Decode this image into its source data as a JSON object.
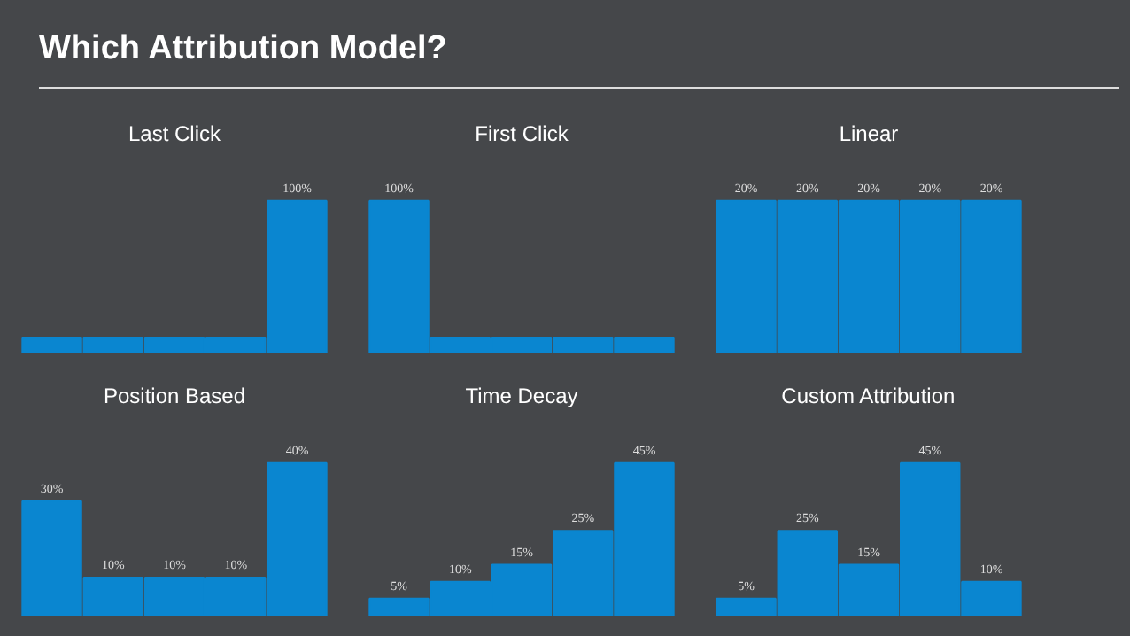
{
  "chart_data": [
    {
      "type": "other",
      "title": "Which Attribution Model?"
    },
    {
      "type": "bar",
      "title": "Last Click",
      "categories": [
        null,
        null,
        null,
        null,
        null
      ],
      "values": [
        10,
        10,
        10,
        10,
        100
      ],
      "value_labels": [
        null,
        null,
        null,
        null,
        "100%"
      ],
      "color": "#0a86d0"
    },
    {
      "type": "bar",
      "title": "First Click",
      "categories": [
        null,
        null,
        null,
        null,
        null
      ],
      "values": [
        100,
        10,
        10,
        10,
        10
      ],
      "value_labels": [
        "100%",
        null,
        null,
        null,
        null
      ],
      "color": "#0a86d0"
    },
    {
      "type": "bar",
      "title": "Linear",
      "categories": [
        null,
        null,
        null,
        null,
        null
      ],
      "values": [
        20,
        20,
        20,
        20,
        20
      ],
      "value_labels": [
        "20%",
        "20%",
        "20%",
        "20%",
        "20%"
      ],
      "color": "#0a86d0"
    },
    {
      "type": "bar",
      "title": "Position Based",
      "categories": [
        null,
        null,
        null,
        null,
        null
      ],
      "values": [
        30,
        10,
        10,
        10,
        40
      ],
      "value_labels": [
        "30%",
        "10%",
        "10%",
        "10%",
        "40%"
      ],
      "color": "#0a86d0"
    },
    {
      "type": "bar",
      "title": "Time Decay",
      "categories": [
        null,
        null,
        null,
        null,
        null
      ],
      "values": [
        5,
        10,
        15,
        25,
        45
      ],
      "value_labels": [
        "5%",
        "10%",
        "15%",
        "25%",
        "45%"
      ],
      "color": "#0a86d0"
    },
    {
      "type": "bar",
      "title": "Custom Attribution",
      "categories": [
        null,
        null,
        null,
        null,
        null
      ],
      "values": [
        5,
        25,
        15,
        45,
        10
      ],
      "value_labels": [
        "5%",
        "25%",
        "15%",
        "45%",
        "10%"
      ],
      "color": "#0a86d0"
    }
  ]
}
